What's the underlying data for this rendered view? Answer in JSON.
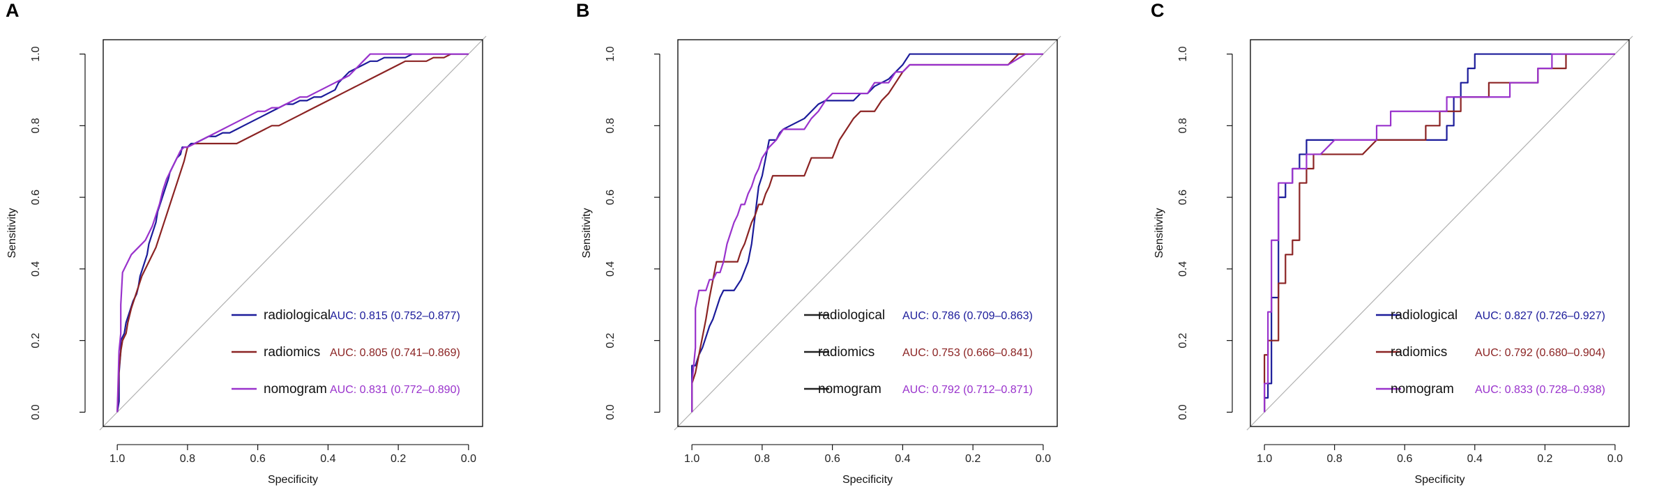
{
  "chart_data": [
    {
      "type": "line",
      "panel": "A",
      "xlabel": "Specificity",
      "ylabel": "Sensitivity",
      "xlim": [
        1.0,
        0.0
      ],
      "ylim": [
        0.0,
        1.0
      ],
      "xticks": [
        "1.0",
        "0.8",
        "0.6",
        "0.4",
        "0.2",
        "0.0"
      ],
      "yticks": [
        "0.0",
        "0.2",
        "0.4",
        "0.6",
        "0.8",
        "1.0"
      ],
      "diagonal_reference": true,
      "legend_position": "bottom-right",
      "series": [
        {
          "name": "radiological",
          "auc_label": "AUC: 0.815 (0.752–0.877)",
          "x": [
            1.0,
            0.995,
            0.995,
            0.99,
            0.99,
            0.98,
            0.975,
            0.965,
            0.955,
            0.945,
            0.94,
            0.935,
            0.925,
            0.915,
            0.91,
            0.9,
            0.89,
            0.885,
            0.875,
            0.865,
            0.855,
            0.85,
            0.84,
            0.83,
            0.82,
            0.815,
            0.8,
            0.79,
            0.78,
            0.76,
            0.74,
            0.72,
            0.7,
            0.68,
            0.66,
            0.64,
            0.62,
            0.6,
            0.58,
            0.56,
            0.54,
            0.52,
            0.5,
            0.48,
            0.46,
            0.44,
            0.42,
            0.4,
            0.38,
            0.37,
            0.36,
            0.35,
            0.34,
            0.32,
            0.3,
            0.28,
            0.26,
            0.24,
            0.22,
            0.2,
            0.18,
            0.16,
            0.14,
            0.12,
            0.1,
            0.05,
            0.0
          ],
          "y": [
            0.0,
            0.03,
            0.11,
            0.17,
            0.2,
            0.22,
            0.25,
            0.28,
            0.31,
            0.33,
            0.35,
            0.38,
            0.41,
            0.44,
            0.47,
            0.5,
            0.53,
            0.56,
            0.59,
            0.62,
            0.65,
            0.67,
            0.69,
            0.71,
            0.72,
            0.74,
            0.74,
            0.75,
            0.75,
            0.76,
            0.77,
            0.77,
            0.78,
            0.78,
            0.79,
            0.8,
            0.81,
            0.82,
            0.83,
            0.84,
            0.85,
            0.86,
            0.86,
            0.87,
            0.87,
            0.88,
            0.88,
            0.89,
            0.9,
            0.92,
            0.93,
            0.94,
            0.95,
            0.96,
            0.97,
            0.98,
            0.98,
            0.99,
            0.99,
            0.99,
            0.99,
            1.0,
            1.0,
            1.0,
            1.0,
            1.0,
            1.0
          ],
          "color": "#1b1b9a"
        },
        {
          "name": "radiomics",
          "auc_label": "AUC: 0.805 (0.741–0.869)",
          "x": [
            1.0,
            0.995,
            0.99,
            0.985,
            0.975,
            0.97,
            0.96,
            0.95,
            0.94,
            0.93,
            0.92,
            0.91,
            0.9,
            0.89,
            0.88,
            0.87,
            0.86,
            0.85,
            0.84,
            0.83,
            0.82,
            0.81,
            0.8,
            0.78,
            0.76,
            0.74,
            0.72,
            0.7,
            0.68,
            0.66,
            0.64,
            0.62,
            0.6,
            0.58,
            0.56,
            0.54,
            0.52,
            0.5,
            0.48,
            0.46,
            0.44,
            0.42,
            0.4,
            0.38,
            0.36,
            0.34,
            0.32,
            0.3,
            0.28,
            0.26,
            0.24,
            0.22,
            0.2,
            0.18,
            0.16,
            0.14,
            0.12,
            0.1,
            0.07,
            0.05,
            0.0
          ],
          "y": [
            0.0,
            0.12,
            0.17,
            0.2,
            0.22,
            0.25,
            0.29,
            0.32,
            0.35,
            0.38,
            0.4,
            0.42,
            0.44,
            0.46,
            0.49,
            0.52,
            0.55,
            0.58,
            0.61,
            0.64,
            0.67,
            0.7,
            0.74,
            0.75,
            0.75,
            0.75,
            0.75,
            0.75,
            0.75,
            0.75,
            0.76,
            0.77,
            0.78,
            0.79,
            0.8,
            0.8,
            0.81,
            0.82,
            0.83,
            0.84,
            0.85,
            0.86,
            0.87,
            0.88,
            0.89,
            0.9,
            0.91,
            0.92,
            0.93,
            0.94,
            0.95,
            0.96,
            0.97,
            0.98,
            0.98,
            0.98,
            0.98,
            0.99,
            0.99,
            1.0,
            1.0
          ],
          "color": "#8b2323"
        },
        {
          "name": "nomogram",
          "auc_label": "AUC: 0.831 (0.772–0.890)",
          "x": [
            1.0,
            0.995,
            0.99,
            0.99,
            0.985,
            0.98,
            0.97,
            0.96,
            0.95,
            0.94,
            0.93,
            0.92,
            0.91,
            0.9,
            0.89,
            0.88,
            0.87,
            0.86,
            0.85,
            0.84,
            0.83,
            0.82,
            0.81,
            0.8,
            0.78,
            0.76,
            0.74,
            0.72,
            0.7,
            0.68,
            0.66,
            0.64,
            0.62,
            0.6,
            0.58,
            0.56,
            0.54,
            0.52,
            0.5,
            0.48,
            0.46,
            0.44,
            0.42,
            0.4,
            0.38,
            0.36,
            0.34,
            0.32,
            0.3,
            0.28,
            0.26,
            0.24,
            0.22,
            0.2,
            0.18,
            0.16,
            0.14,
            0.12,
            0.1,
            0.05,
            0.0
          ],
          "y": [
            0.0,
            0.17,
            0.22,
            0.3,
            0.39,
            0.4,
            0.42,
            0.44,
            0.45,
            0.46,
            0.47,
            0.48,
            0.5,
            0.52,
            0.55,
            0.58,
            0.62,
            0.65,
            0.67,
            0.69,
            0.71,
            0.73,
            0.74,
            0.74,
            0.75,
            0.76,
            0.77,
            0.78,
            0.79,
            0.8,
            0.81,
            0.82,
            0.83,
            0.84,
            0.84,
            0.85,
            0.85,
            0.86,
            0.87,
            0.88,
            0.88,
            0.89,
            0.9,
            0.91,
            0.92,
            0.93,
            0.94,
            0.96,
            0.98,
            1.0,
            1.0,
            1.0,
            1.0,
            1.0,
            1.0,
            1.0,
            1.0,
            1.0,
            1.0,
            1.0,
            1.0
          ],
          "color": "#9932cc"
        }
      ]
    },
    {
      "type": "line",
      "panel": "B",
      "xlabel": "Specificity",
      "ylabel": "Sensitivity",
      "xlim": [
        1.0,
        0.0
      ],
      "ylim": [
        0.0,
        1.0
      ],
      "xticks": [
        "1.0",
        "0.8",
        "0.6",
        "0.4",
        "0.2",
        "0.0"
      ],
      "yticks": [
        "0.0",
        "0.2",
        "0.4",
        "0.6",
        "0.8",
        "1.0"
      ],
      "diagonal_reference": true,
      "legend_position": "bottom-right",
      "series": [
        {
          "name": "radiological",
          "auc_label": "AUC: 0.786 (0.709–0.863)",
          "x": [
            1.0,
            1.0,
            0.99,
            0.98,
            0.97,
            0.96,
            0.95,
            0.94,
            0.93,
            0.92,
            0.91,
            0.9,
            0.89,
            0.88,
            0.86,
            0.84,
            0.83,
            0.82,
            0.81,
            0.8,
            0.79,
            0.78,
            0.77,
            0.76,
            0.75,
            0.74,
            0.72,
            0.7,
            0.68,
            0.66,
            0.64,
            0.62,
            0.6,
            0.58,
            0.56,
            0.54,
            0.52,
            0.5,
            0.48,
            0.46,
            0.44,
            0.42,
            0.4,
            0.38,
            0.36,
            0.34,
            0.3,
            0.2,
            0.14,
            0.1,
            0.05,
            0.0
          ],
          "y": [
            0.0,
            0.13,
            0.13,
            0.16,
            0.18,
            0.21,
            0.24,
            0.26,
            0.29,
            0.32,
            0.34,
            0.34,
            0.34,
            0.34,
            0.37,
            0.42,
            0.47,
            0.55,
            0.63,
            0.66,
            0.71,
            0.76,
            0.76,
            0.76,
            0.78,
            0.79,
            0.8,
            0.81,
            0.82,
            0.84,
            0.86,
            0.87,
            0.87,
            0.87,
            0.87,
            0.87,
            0.89,
            0.89,
            0.91,
            0.92,
            0.93,
            0.95,
            0.97,
            1.0,
            1.0,
            1.0,
            1.0,
            1.0,
            1.0,
            1.0,
            1.0,
            1.0
          ],
          "color": "#1b1b9a"
        },
        {
          "name": "radiomics",
          "auc_label": "AUC: 0.753 (0.666–0.841)",
          "x": [
            1.0,
            1.0,
            0.99,
            0.98,
            0.97,
            0.96,
            0.95,
            0.94,
            0.93,
            0.92,
            0.91,
            0.9,
            0.89,
            0.88,
            0.87,
            0.86,
            0.85,
            0.84,
            0.83,
            0.82,
            0.81,
            0.8,
            0.79,
            0.78,
            0.77,
            0.76,
            0.74,
            0.72,
            0.7,
            0.68,
            0.66,
            0.64,
            0.62,
            0.6,
            0.58,
            0.56,
            0.54,
            0.52,
            0.5,
            0.48,
            0.46,
            0.44,
            0.42,
            0.4,
            0.38,
            0.36,
            0.34,
            0.32,
            0.3,
            0.2,
            0.1,
            0.07,
            0.0
          ],
          "y": [
            0.0,
            0.08,
            0.11,
            0.16,
            0.21,
            0.26,
            0.32,
            0.37,
            0.42,
            0.42,
            0.42,
            0.42,
            0.42,
            0.42,
            0.42,
            0.45,
            0.47,
            0.5,
            0.53,
            0.55,
            0.58,
            0.58,
            0.61,
            0.63,
            0.66,
            0.66,
            0.66,
            0.66,
            0.66,
            0.66,
            0.71,
            0.71,
            0.71,
            0.71,
            0.76,
            0.79,
            0.82,
            0.84,
            0.84,
            0.84,
            0.87,
            0.89,
            0.92,
            0.95,
            0.97,
            0.97,
            0.97,
            0.97,
            0.97,
            0.97,
            0.97,
            1.0,
            1.0
          ],
          "color": "#8b2323"
        },
        {
          "name": "nomogram",
          "auc_label": "AUC: 0.792 (0.712–0.871)",
          "x": [
            1.0,
            1.0,
            0.99,
            0.99,
            0.98,
            0.97,
            0.96,
            0.95,
            0.94,
            0.93,
            0.92,
            0.91,
            0.9,
            0.89,
            0.88,
            0.87,
            0.86,
            0.85,
            0.84,
            0.83,
            0.82,
            0.81,
            0.8,
            0.78,
            0.76,
            0.74,
            0.72,
            0.7,
            0.68,
            0.66,
            0.64,
            0.62,
            0.6,
            0.58,
            0.56,
            0.54,
            0.52,
            0.5,
            0.48,
            0.46,
            0.44,
            0.42,
            0.4,
            0.38,
            0.36,
            0.34,
            0.3,
            0.2,
            0.14,
            0.1,
            0.05,
            0.0
          ],
          "y": [
            0.0,
            0.08,
            0.18,
            0.29,
            0.34,
            0.34,
            0.34,
            0.37,
            0.37,
            0.39,
            0.39,
            0.42,
            0.47,
            0.5,
            0.53,
            0.55,
            0.58,
            0.58,
            0.61,
            0.63,
            0.66,
            0.68,
            0.71,
            0.74,
            0.76,
            0.79,
            0.79,
            0.79,
            0.79,
            0.82,
            0.84,
            0.87,
            0.89,
            0.89,
            0.89,
            0.89,
            0.89,
            0.89,
            0.92,
            0.92,
            0.92,
            0.95,
            0.95,
            0.97,
            0.97,
            0.97,
            0.97,
            0.97,
            0.97,
            0.97,
            1.0,
            1.0
          ],
          "color": "#9932cc"
        }
      ]
    },
    {
      "type": "line",
      "panel": "C",
      "xlabel": "Specificity",
      "ylabel": "Sensitivity",
      "xlim": [
        1.0,
        0.0
      ],
      "ylim": [
        0.0,
        1.0
      ],
      "xticks": [
        "1.0",
        "0.8",
        "0.6",
        "0.4",
        "0.2",
        "0.0"
      ],
      "yticks": [
        "0.0",
        "0.2",
        "0.4",
        "0.6",
        "0.8",
        "1.0"
      ],
      "diagonal_reference": true,
      "legend_position": "bottom-right",
      "series": [
        {
          "name": "radiological",
          "auc_label": "AUC: 0.827 (0.726–0.927)",
          "x": [
            1.0,
            1.0,
            0.99,
            0.99,
            0.98,
            0.98,
            0.96,
            0.96,
            0.94,
            0.94,
            0.92,
            0.92,
            0.9,
            0.9,
            0.88,
            0.88,
            0.84,
            0.8,
            0.76,
            0.72,
            0.68,
            0.64,
            0.6,
            0.56,
            0.52,
            0.48,
            0.48,
            0.46,
            0.46,
            0.44,
            0.44,
            0.42,
            0.42,
            0.4,
            0.4,
            0.3,
            0.22,
            0.1,
            0.0
          ],
          "y": [
            0.0,
            0.04,
            0.04,
            0.08,
            0.08,
            0.32,
            0.32,
            0.6,
            0.6,
            0.64,
            0.64,
            0.68,
            0.68,
            0.72,
            0.72,
            0.76,
            0.76,
            0.76,
            0.76,
            0.76,
            0.76,
            0.76,
            0.76,
            0.76,
            0.76,
            0.76,
            0.8,
            0.8,
            0.88,
            0.88,
            0.92,
            0.92,
            0.96,
            0.96,
            1.0,
            1.0,
            1.0,
            1.0,
            1.0
          ],
          "color": "#1b1b9a"
        },
        {
          "name": "radiomics",
          "auc_label": "AUC: 0.792 (0.680–0.904)",
          "x": [
            1.0,
            1.0,
            0.99,
            0.99,
            0.98,
            0.98,
            0.96,
            0.96,
            0.94,
            0.94,
            0.92,
            0.92,
            0.9,
            0.9,
            0.88,
            0.88,
            0.86,
            0.86,
            0.84,
            0.8,
            0.76,
            0.72,
            0.68,
            0.64,
            0.6,
            0.56,
            0.54,
            0.54,
            0.5,
            0.5,
            0.44,
            0.44,
            0.36,
            0.36,
            0.22,
            0.22,
            0.14,
            0.14,
            0.0
          ],
          "y": [
            0.0,
            0.16,
            0.16,
            0.2,
            0.2,
            0.2,
            0.2,
            0.36,
            0.36,
            0.44,
            0.44,
            0.48,
            0.48,
            0.64,
            0.64,
            0.68,
            0.68,
            0.72,
            0.72,
            0.72,
            0.72,
            0.72,
            0.76,
            0.76,
            0.76,
            0.76,
            0.76,
            0.8,
            0.8,
            0.84,
            0.84,
            0.88,
            0.88,
            0.92,
            0.92,
            0.96,
            0.96,
            1.0,
            1.0
          ],
          "color": "#8b2323"
        },
        {
          "name": "nomogram",
          "auc_label": "AUC: 0.833 (0.728–0.938)",
          "x": [
            1.0,
            1.0,
            0.99,
            0.99,
            0.98,
            0.98,
            0.96,
            0.96,
            0.92,
            0.92,
            0.88,
            0.88,
            0.84,
            0.8,
            0.76,
            0.72,
            0.68,
            0.68,
            0.64,
            0.64,
            0.56,
            0.56,
            0.48,
            0.48,
            0.4,
            0.4,
            0.3,
            0.3,
            0.22,
            0.22,
            0.18,
            0.18,
            0.1,
            0.0
          ],
          "y": [
            0.0,
            0.08,
            0.08,
            0.28,
            0.28,
            0.48,
            0.48,
            0.64,
            0.64,
            0.68,
            0.68,
            0.72,
            0.72,
            0.76,
            0.76,
            0.76,
            0.76,
            0.8,
            0.8,
            0.84,
            0.84,
            0.84,
            0.84,
            0.88,
            0.88,
            0.88,
            0.88,
            0.92,
            0.92,
            0.96,
            0.96,
            1.0,
            1.0,
            1.0
          ],
          "color": "#9932cc"
        }
      ]
    }
  ],
  "legend_line_colors": {
    "radiological": "#1b1b9a",
    "radiomics": "#8b2323",
    "nomogram": "#9932cc",
    "panel_b_legend": "#222222"
  },
  "axis_color": "#000000",
  "diagonal_color": "#b0b0b0"
}
